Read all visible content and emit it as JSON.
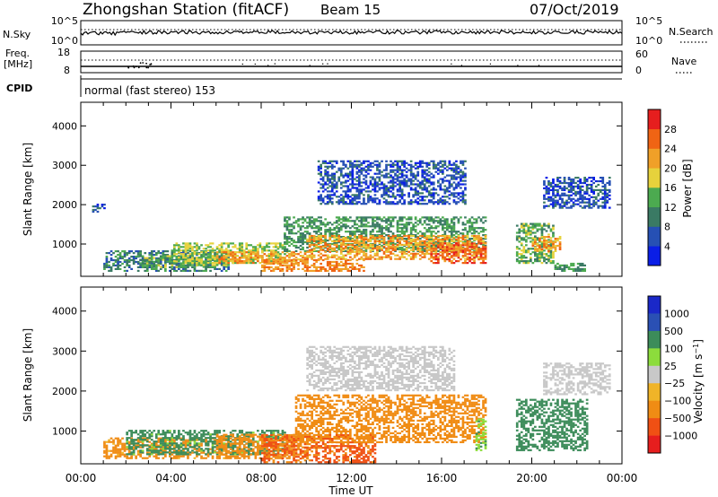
{
  "header": {
    "station": "Zhongshan Station (fitACF)",
    "beam": "Beam 15",
    "date": "07/Oct/2019"
  },
  "status_panels": {
    "nsky_label": "N.Sky",
    "nsky_ticks": [
      "10^5",
      "10^0"
    ],
    "nsearch_label": "N.Search",
    "nsearch_ticks": [
      "10^5",
      "10^0"
    ],
    "freq_label_1": "Freq.",
    "freq_label_2": "[MHz]",
    "freq_ticks": [
      "18",
      "8"
    ],
    "nave_label": "Nave",
    "nave_ticks": [
      "60",
      "0"
    ],
    "cpid_label": "CPID",
    "cpid_text": "normal (fast stereo) 153"
  },
  "colors": {
    "power": [
      "#0a1ee6",
      "#2650b4",
      "#3a7a64",
      "#4caa50",
      "#e6d23c",
      "#f0a028",
      "#f06414",
      "#e61e1e"
    ],
    "velocity": [
      "#e61e1e",
      "#f05014",
      "#f08c14",
      "#f0b428",
      "#c8c8c8",
      "#8cdc3c",
      "#3c8c5a",
      "#2a50b4",
      "#1a28c8"
    ]
  },
  "chart_data": [
    {
      "type": "heatmap",
      "name": "power",
      "ylabel": "Slant Range [km]",
      "xlabel": "",
      "x_ticks": [
        "00:00",
        "04:00",
        "08:00",
        "12:00",
        "16:00",
        "20:00",
        "00:00"
      ],
      "x_range_hours": [
        0,
        24
      ],
      "y_ticks": [
        1000,
        2000,
        3000,
        4000
      ],
      "ylim": [
        180,
        4600
      ],
      "colorbar_label": "Power [dB]",
      "colorbar_ticks": [
        4,
        8,
        12,
        16,
        20,
        24,
        28
      ],
      "colorbar_range": [
        0,
        32
      ],
      "scatter_regions": [
        {
          "t_start": 0.5,
          "t_end": 1.0,
          "r_min": 1800,
          "r_max": 2000,
          "value": 6
        },
        {
          "t_start": 1.0,
          "t_end": 6.5,
          "r_min": 300,
          "r_max": 800,
          "value": 10
        },
        {
          "t_start": 2.5,
          "t_end": 6.5,
          "r_min": 400,
          "r_max": 700,
          "value": 14
        },
        {
          "t_start": 4.0,
          "t_end": 9.0,
          "r_min": 500,
          "r_max": 1000,
          "value": 16
        },
        {
          "t_start": 6.0,
          "t_end": 10.0,
          "r_min": 500,
          "r_max": 800,
          "value": 22
        },
        {
          "t_start": 8.0,
          "t_end": 12.5,
          "r_min": 300,
          "r_max": 600,
          "value": 24
        },
        {
          "t_start": 9.0,
          "t_end": 18.0,
          "r_min": 800,
          "r_max": 1700,
          "value": 12
        },
        {
          "t_start": 10.0,
          "t_end": 18.0,
          "r_min": 600,
          "r_max": 1200,
          "value": 22
        },
        {
          "t_start": 15.5,
          "t_end": 18.0,
          "r_min": 500,
          "r_max": 1000,
          "value": 26
        },
        {
          "t_start": 10.5,
          "t_end": 17.0,
          "r_min": 2000,
          "r_max": 3100,
          "value": 6
        },
        {
          "t_start": 19.3,
          "t_end": 21.0,
          "r_min": 500,
          "r_max": 1500,
          "value": 14
        },
        {
          "t_start": 20.0,
          "t_end": 21.3,
          "r_min": 800,
          "r_max": 1200,
          "value": 22
        },
        {
          "t_start": 20.5,
          "t_end": 23.5,
          "r_min": 1900,
          "r_max": 2700,
          "value": 6
        },
        {
          "t_start": 21.0,
          "t_end": 22.5,
          "r_min": 300,
          "r_max": 500,
          "value": 12
        }
      ]
    },
    {
      "type": "heatmap",
      "name": "velocity",
      "ylabel": "Slant Range [km]",
      "xlabel": "Time UT",
      "x_ticks": [
        "00:00",
        "04:00",
        "08:00",
        "12:00",
        "16:00",
        "20:00",
        "00:00"
      ],
      "x_range_hours": [
        0,
        24
      ],
      "y_ticks": [
        1000,
        2000,
        3000,
        4000
      ],
      "ylim": [
        180,
        4600
      ],
      "colorbar_label": "Velocity [m s^-1]",
      "colorbar_ticks": [
        "1000",
        "500",
        "100",
        "25",
        "−25",
        "−100",
        "−500",
        "−1000"
      ],
      "scatter_regions": [
        {
          "t_start": 1.0,
          "t_end": 6.5,
          "r_min": 300,
          "r_max": 800,
          "value": -150
        },
        {
          "t_start": 2.0,
          "t_end": 9.0,
          "r_min": 400,
          "r_max": 1000,
          "value": 150
        },
        {
          "t_start": 6.0,
          "t_end": 10.0,
          "r_min": 300,
          "r_max": 900,
          "value": -200
        },
        {
          "t_start": 8.0,
          "t_end": 13.0,
          "r_min": 200,
          "r_max": 900,
          "value": -600
        },
        {
          "t_start": 9.5,
          "t_end": 18.0,
          "r_min": 700,
          "r_max": 1900,
          "value": -200
        },
        {
          "t_start": 10.0,
          "t_end": 16.5,
          "r_min": 2000,
          "r_max": 3100,
          "value": 0
        },
        {
          "t_start": 17.5,
          "t_end": 18.0,
          "r_min": 500,
          "r_max": 1300,
          "value": 80
        },
        {
          "t_start": 19.3,
          "t_end": 22.5,
          "r_min": 500,
          "r_max": 1800,
          "value": 200
        },
        {
          "t_start": 20.5,
          "t_end": 23.5,
          "r_min": 1900,
          "r_max": 2700,
          "value": 10
        }
      ]
    }
  ]
}
